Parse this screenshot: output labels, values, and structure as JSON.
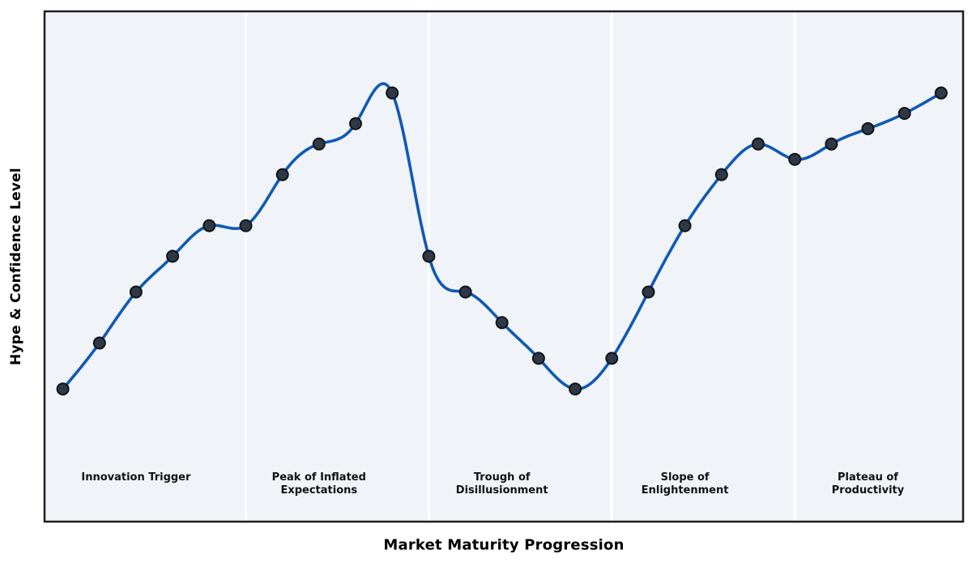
{
  "chart_data": {
    "type": "line",
    "title": "",
    "xlabel": "Market Maturity Progression",
    "ylabel": "Hype & Confidence Level",
    "x": [
      0,
      1,
      2,
      3,
      4,
      5,
      6,
      7,
      8,
      9,
      10,
      11,
      12,
      13,
      14,
      15,
      16,
      17,
      18,
      19,
      20,
      21,
      22,
      23,
      24
    ],
    "series": [
      {
        "name": "Hype & Confidence Level",
        "values": [
          26,
          35,
          45,
          52,
          58,
          58,
          68,
          74,
          78,
          84,
          52,
          45,
          39,
          32,
          26,
          32,
          45,
          58,
          68,
          74,
          71,
          74,
          77,
          80,
          84
        ]
      }
    ],
    "xlim": [
      -0.5,
      24.6
    ],
    "ylim": [
      0,
      100
    ],
    "grid": false,
    "legend": "none",
    "x_ticks": "none",
    "y_ticks": "none",
    "line_smoothing": "cubic-spline",
    "marker": "circle",
    "phase_boundaries_x": [
      5,
      10,
      15,
      20
    ],
    "phases": [
      {
        "label": "Innovation Trigger",
        "center_x": 2
      },
      {
        "label": "Peak of Inflated\nExpectations",
        "center_x": 7
      },
      {
        "label": "Trough of\nDisillusionment",
        "center_x": 12
      },
      {
        "label": "Slope of\nEnlightenment",
        "center_x": 17
      },
      {
        "label": "Plateau of\nProductivity",
        "center_x": 22
      }
    ]
  },
  "style": {
    "figure_background": "#ffffff",
    "plot_background": "#f0f4f8",
    "band_separator_color": "#ffffff",
    "border_color": "#1f1f1f",
    "line_color": "#1159b4",
    "marker_fill": "#2f3845",
    "marker_edge": "#10141a",
    "label_color": "#111111"
  }
}
